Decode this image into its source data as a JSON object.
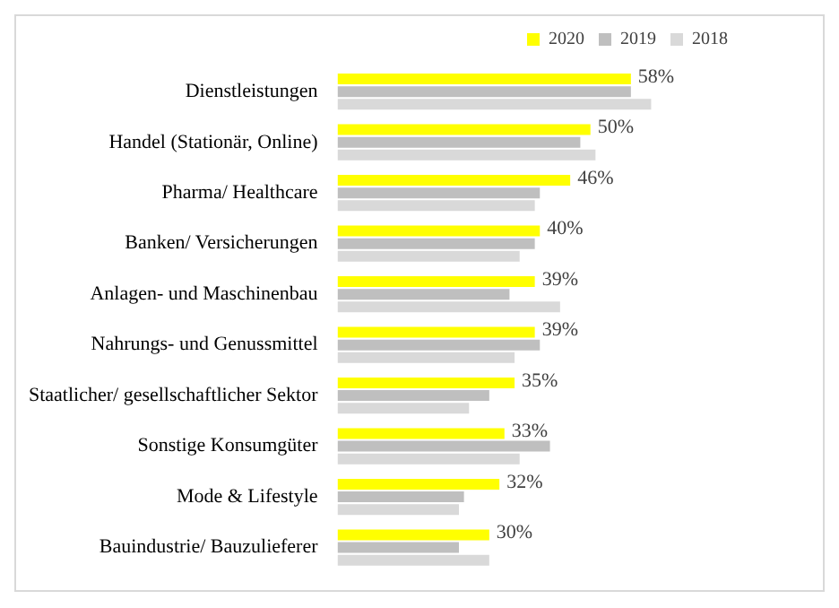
{
  "chart_data": {
    "type": "bar",
    "orientation": "horizontal",
    "categories": [
      "Dienstleistungen",
      "Handel (Stationär, Online)",
      "Pharma/ Healthcare",
      "Banken/ Versicherungen",
      "Anlagen- und Maschinenbau",
      "Nahrungs- und Genussmittel",
      "Staatlicher/ gesellschaftlicher Sektor",
      "Sonstige Konsumgüter",
      "Mode & Lifestyle",
      "Bauindustrie/ Bauzulieferer"
    ],
    "series": [
      {
        "name": "2020",
        "color": "#ffff00",
        "values": [
          58,
          50,
          46,
          40,
          39,
          39,
          35,
          33,
          32,
          30
        ],
        "value_labels": [
          "58%",
          "50%",
          "46%",
          "40%",
          "39%",
          "39%",
          "35%",
          "33%",
          "32%",
          "30%"
        ]
      },
      {
        "name": "2019",
        "color": "#bfbfbf",
        "values": [
          58,
          48,
          40,
          39,
          34,
          40,
          30,
          42,
          25,
          24
        ]
      },
      {
        "name": "2018",
        "color": "#d9d9d9",
        "values": [
          62,
          51,
          39,
          36,
          44,
          35,
          26,
          36,
          24,
          30
        ]
      }
    ],
    "legend": "top"
  }
}
